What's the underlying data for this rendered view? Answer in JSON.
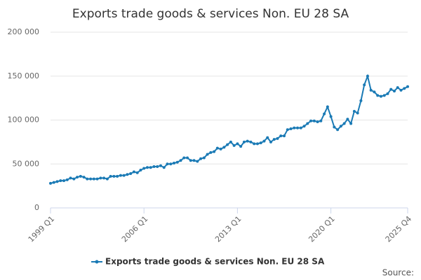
{
  "chart_data": {
    "type": "line",
    "title": "Exports trade goods & services Non. EU 28 SA",
    "source": "Source:",
    "categories": [
      "1999 Q1",
      null,
      null,
      null,
      null,
      null,
      null,
      null,
      null,
      null,
      null,
      null,
      null,
      null,
      null,
      null,
      null,
      null,
      null,
      null,
      null,
      null,
      null,
      null,
      null,
      null,
      null,
      null,
      "2006 Q1",
      null,
      null,
      null,
      null,
      null,
      null,
      null,
      null,
      null,
      null,
      null,
      null,
      null,
      null,
      null,
      null,
      null,
      null,
      null,
      null,
      null,
      null,
      null,
      null,
      null,
      null,
      null,
      "2013 Q1",
      null,
      null,
      null,
      null,
      null,
      null,
      null,
      null,
      null,
      null,
      null,
      null,
      null,
      null,
      null,
      null,
      null,
      null,
      null,
      null,
      null,
      null,
      null,
      null,
      null,
      null,
      null,
      "2020 Q1",
      null,
      null,
      null,
      null,
      null,
      null,
      null,
      null,
      null,
      null,
      null,
      null,
      null,
      null,
      null,
      null,
      null,
      null,
      null,
      null,
      null,
      null,
      "2025 Q4"
    ],
    "series": [
      {
        "name": "Exports trade goods & services Non. EU 28 SA",
        "color": "#1a7ab5",
        "values": [
          28000,
          29000,
          30000,
          31000,
          31000,
          32000,
          34000,
          33000,
          35000,
          36000,
          35000,
          33000,
          33000,
          33000,
          33000,
          34000,
          34000,
          33000,
          36000,
          36000,
          36000,
          37000,
          37000,
          38000,
          39000,
          41000,
          40000,
          43000,
          45000,
          46000,
          46000,
          47000,
          47000,
          48000,
          46000,
          50000,
          50000,
          51000,
          52000,
          54000,
          57000,
          57000,
          54000,
          54000,
          53000,
          56000,
          57000,
          61000,
          63000,
          64000,
          68000,
          67000,
          69000,
          72000,
          75000,
          71000,
          73000,
          70000,
          75000,
          76000,
          75000,
          73000,
          73000,
          74000,
          76000,
          80000,
          75000,
          78000,
          79000,
          82000,
          82000,
          89000,
          90000,
          91000,
          91000,
          91000,
          93000,
          96000,
          99000,
          99000,
          98000,
          99000,
          107000,
          115000,
          104000,
          92000,
          89000,
          93000,
          96000,
          101000,
          96000,
          110000,
          108000,
          122000,
          140000,
          150000,
          134000,
          132000,
          128000,
          127000,
          128000,
          130000,
          135000,
          133000,
          137000,
          134000,
          136000,
          138000
        ]
      }
    ],
    "ylim": [
      0,
      200000
    ],
    "yticks": [
      0,
      {
        "value": 50000,
        "label": "50 000"
      },
      {
        "value": 100000,
        "label": "100 000"
      },
      {
        "value": 150000,
        "label": "150 000"
      },
      {
        "value": 200000,
        "label": "200 000"
      }
    ],
    "grid": true
  }
}
